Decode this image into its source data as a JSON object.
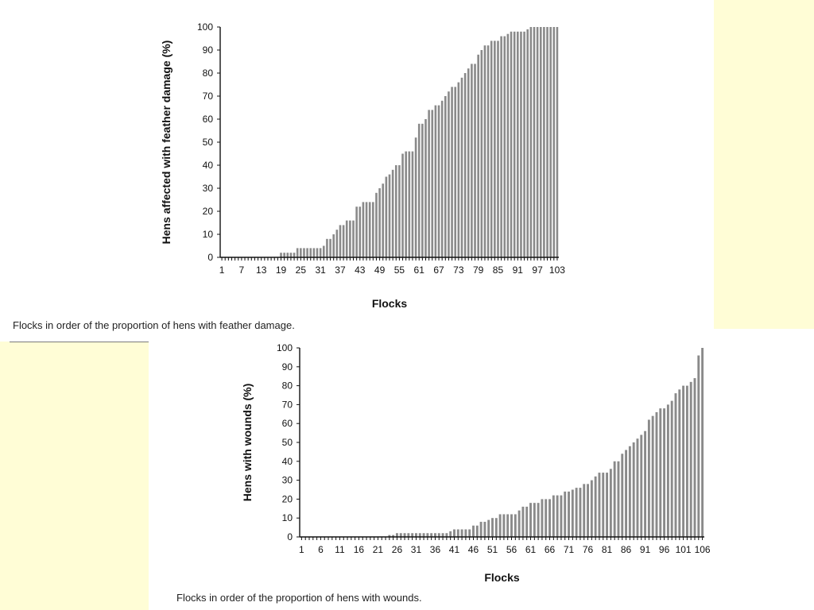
{
  "chart_data": [
    {
      "type": "bar",
      "xlabel": "Flocks",
      "ylabel": "Hens affected with feather damage (%)",
      "ylim": [
        0,
        100
      ],
      "yticks": [
        0,
        10,
        20,
        30,
        40,
        50,
        60,
        70,
        80,
        90,
        100
      ],
      "xticks": [
        1,
        7,
        13,
        19,
        25,
        31,
        37,
        43,
        49,
        55,
        61,
        67,
        73,
        79,
        85,
        91,
        97,
        103
      ],
      "caption": "Flocks in order of the proportion of hens with feather damage.",
      "grid": false,
      "x": [
        1,
        2,
        3,
        4,
        5,
        6,
        7,
        8,
        9,
        10,
        11,
        12,
        13,
        14,
        15,
        16,
        17,
        18,
        19,
        20,
        21,
        22,
        23,
        24,
        25,
        26,
        27,
        28,
        29,
        30,
        31,
        32,
        33,
        34,
        35,
        36,
        37,
        38,
        39,
        40,
        41,
        42,
        43,
        44,
        45,
        46,
        47,
        48,
        49,
        50,
        51,
        52,
        53,
        54,
        55,
        56,
        57,
        58,
        59,
        60,
        61,
        62,
        63,
        64,
        65,
        66,
        67,
        68,
        69,
        70,
        71,
        72,
        73,
        74,
        75,
        76,
        77,
        78,
        79,
        80,
        81,
        82,
        83,
        84,
        85,
        86,
        87,
        88,
        89,
        90,
        91,
        92,
        93,
        94,
        95,
        96,
        97,
        98,
        99,
        100,
        101,
        102,
        103
      ],
      "values": [
        0,
        0,
        0,
        0,
        0,
        0,
        0,
        0,
        0,
        0,
        0,
        0,
        0,
        0,
        0,
        0,
        0,
        0,
        2,
        2,
        2,
        2,
        2,
        4,
        4,
        4,
        4,
        4,
        4,
        4,
        4,
        5,
        8,
        8,
        10,
        12,
        14,
        14,
        16,
        16,
        16,
        22,
        22,
        24,
        24,
        24,
        24,
        28,
        30,
        32,
        35,
        36,
        38,
        40,
        40,
        45,
        46,
        46,
        46,
        52,
        58,
        58,
        60,
        64,
        64,
        66,
        66,
        68,
        70,
        72,
        74,
        74,
        76,
        78,
        80,
        82,
        84,
        84,
        88,
        90,
        92,
        92,
        94,
        94,
        94,
        96,
        96,
        97,
        98,
        98,
        98,
        98,
        98,
        99,
        100,
        100,
        100,
        100,
        100,
        100,
        100,
        100,
        100
      ]
    },
    {
      "type": "bar",
      "xlabel": "Flocks",
      "ylabel": "Hens with wounds (%)",
      "ylim": [
        0,
        100
      ],
      "yticks": [
        0,
        10,
        20,
        30,
        40,
        50,
        60,
        70,
        80,
        90,
        100
      ],
      "xticks": [
        1,
        6,
        11,
        16,
        21,
        26,
        31,
        36,
        41,
        46,
        51,
        56,
        61,
        66,
        71,
        76,
        81,
        86,
        91,
        96,
        101,
        106
      ],
      "caption": "Flocks in order of the proportion of hens with wounds.",
      "grid": false,
      "x": [
        1,
        2,
        3,
        4,
        5,
        6,
        7,
        8,
        9,
        10,
        11,
        12,
        13,
        14,
        15,
        16,
        17,
        18,
        19,
        20,
        21,
        22,
        23,
        24,
        25,
        26,
        27,
        28,
        29,
        30,
        31,
        32,
        33,
        34,
        35,
        36,
        37,
        38,
        39,
        40,
        41,
        42,
        43,
        44,
        45,
        46,
        47,
        48,
        49,
        50,
        51,
        52,
        53,
        54,
        55,
        56,
        57,
        58,
        59,
        60,
        61,
        62,
        63,
        64,
        65,
        66,
        67,
        68,
        69,
        70,
        71,
        72,
        73,
        74,
        75,
        76,
        77,
        78,
        79,
        80,
        81,
        82,
        83,
        84,
        85,
        86,
        87,
        88,
        89,
        90,
        91,
        92,
        93,
        94,
        95,
        96,
        97,
        98,
        99,
        100,
        101,
        102,
        103,
        104,
        105,
        106
      ],
      "values": [
        0,
        0,
        0,
        0,
        0,
        0,
        0,
        0,
        0,
        0,
        0,
        0,
        0,
        0,
        0,
        0,
        0,
        0,
        0,
        0,
        0,
        0,
        0,
        1,
        1,
        2,
        2,
        2,
        2,
        2,
        2,
        2,
        2,
        2,
        2,
        2,
        2,
        2,
        2,
        3,
        4,
        4,
        4,
        4,
        4,
        6,
        6,
        8,
        8,
        9,
        10,
        10,
        12,
        12,
        12,
        12,
        12,
        14,
        16,
        16,
        18,
        18,
        18,
        20,
        20,
        20,
        22,
        22,
        22,
        24,
        24,
        25,
        26,
        26,
        28,
        28,
        30,
        32,
        34,
        34,
        34,
        36,
        40,
        40,
        44,
        46,
        48,
        50,
        52,
        54,
        56,
        62,
        64,
        66,
        68,
        68,
        70,
        72,
        76,
        78,
        80,
        80,
        82,
        84,
        96,
        100
      ]
    }
  ]
}
